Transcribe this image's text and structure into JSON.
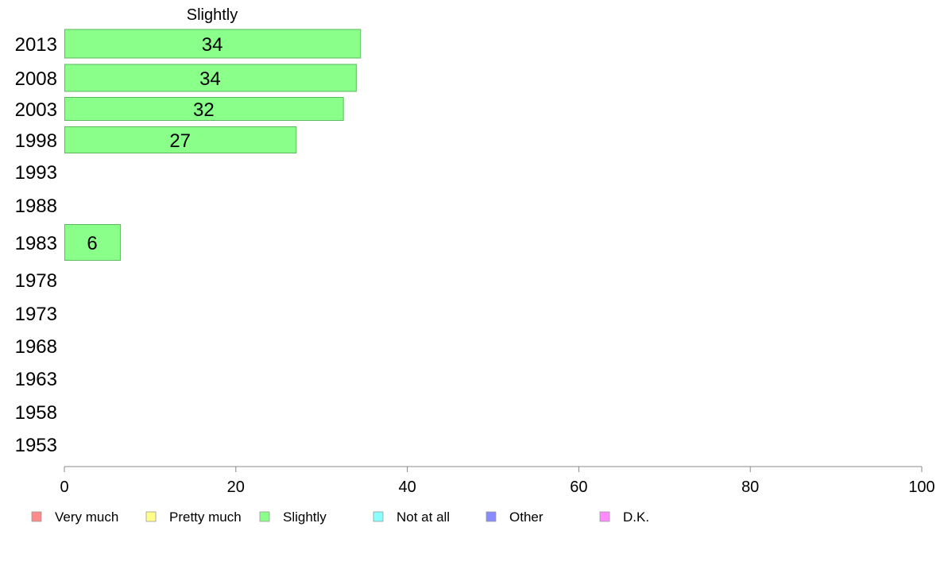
{
  "chart_data": {
    "type": "bar",
    "orientation": "horizontal",
    "title": "Slightly",
    "categories": [
      "2013",
      "2008",
      "2003",
      "1998",
      "1993",
      "1988",
      "1983",
      "1978",
      "1973",
      "1968",
      "1963",
      "1958",
      "1953"
    ],
    "values": [
      34.5,
      34,
      32.5,
      27,
      null,
      null,
      6.5,
      null,
      null,
      null,
      null,
      null,
      null
    ],
    "value_labels": [
      "34",
      "34",
      "32",
      "27",
      "",
      "",
      "6",
      "",
      "",
      "",
      "",
      "",
      ""
    ],
    "xlim": [
      0,
      100
    ],
    "xticks": [
      0,
      20,
      40,
      60,
      80,
      100
    ],
    "grid": false,
    "legend_position": "bottom",
    "legend": [
      {
        "name": "Very much",
        "color": "#ff8a8a"
      },
      {
        "name": "Pretty much",
        "color": "#ffff8a"
      },
      {
        "name": "Slightly",
        "color": "#8aff8a"
      },
      {
        "name": "Not at all",
        "color": "#8affff"
      },
      {
        "name": "Other",
        "color": "#8a8aff"
      },
      {
        "name": "D.K.",
        "color": "#ff8aff"
      }
    ],
    "bar_color": "#8aff8a",
    "bar_stroke": "#5cb85c"
  }
}
